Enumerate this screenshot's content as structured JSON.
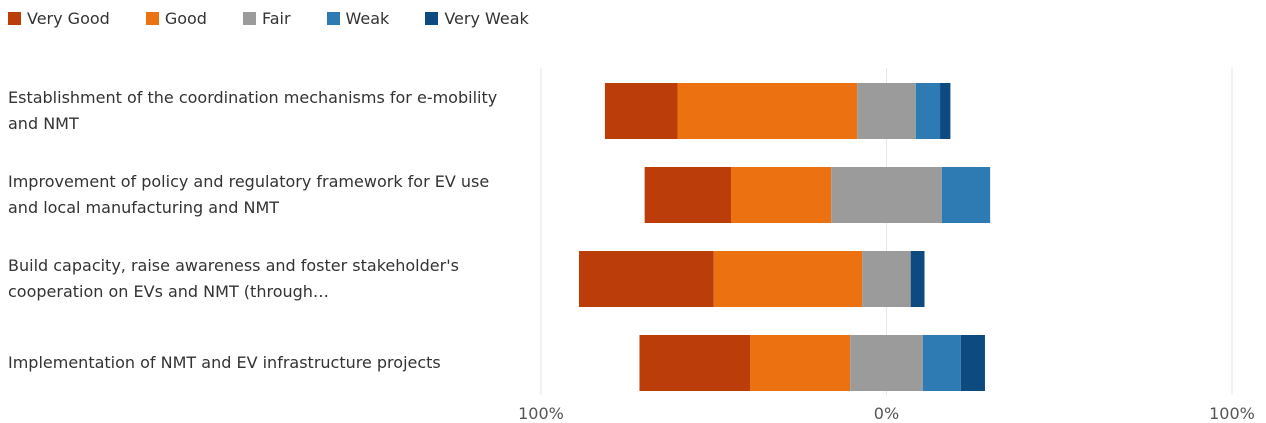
{
  "chart_data": {
    "type": "diverging_bar",
    "categories": [
      "Establishment of the coordination mechanisms for e-mobility and NMT",
      "Improvement of policy and regulatory framework for EV use and local manufacturing and NMT",
      "Build capacity, raise awareness and foster stakeholder's cooperation on EVs and NMT (through…",
      "Implementation of NMT and EV infrastructure projects"
    ],
    "series": [
      {
        "name": "Very Good",
        "color": "#bb3d09",
        "values": [
          21,
          25,
          39,
          32
        ]
      },
      {
        "name": "Good",
        "color": "#ec7110",
        "values": [
          52,
          29,
          43,
          29
        ]
      },
      {
        "name": "Fair",
        "color": "#9b9b9b",
        "values": [
          17,
          32,
          14,
          21
        ]
      },
      {
        "name": "Weak",
        "color": "#2e7bb4",
        "values": [
          7,
          14,
          0,
          11
        ]
      },
      {
        "name": "Very Weak",
        "color": "#0d4a80",
        "values": [
          3,
          0,
          4,
          7
        ]
      }
    ],
    "xlim": [
      -100,
      100
    ],
    "xticks": [
      {
        "value": -100,
        "label": "100%"
      },
      {
        "value": 0,
        "label": "0%"
      },
      {
        "value": 100,
        "label": "100%"
      }
    ],
    "grid": true
  }
}
